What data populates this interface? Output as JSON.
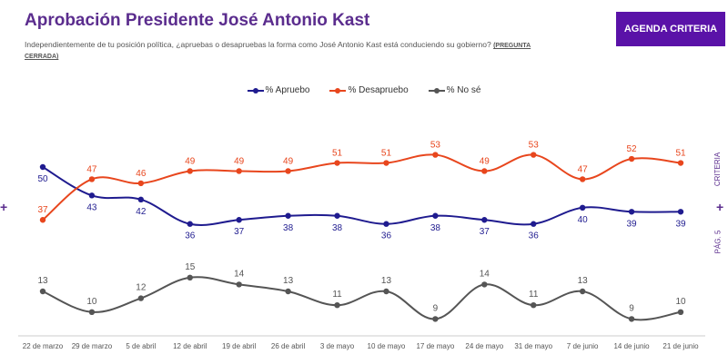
{
  "header": {
    "title": "Aprobación Presidente José Antonio Kast",
    "subtitle": "Independientemente de tu posición política, ¿apruebas o desapruebas la forma como José Antonio Kast está conduciendo su gobierno?",
    "subtitle_tag": "(PREGUNTA CERRADA)",
    "badge": "AGENDA CRITERIA"
  },
  "side": {
    "brand": "CRITERIA",
    "page": "PÁG. 5",
    "plus": "+"
  },
  "colors": {
    "accent": "#5a12a8",
    "apruebo": "#1f1b8f",
    "desapruebo": "#e8461d",
    "nose": "#555555"
  },
  "chart_data": {
    "type": "line",
    "title": "Aprobación Presidente José Antonio Kast",
    "categories": [
      "22 de marzo",
      "29 de marzo",
      "5 de abril",
      "12 de abril",
      "19 de abril",
      "26 de abril",
      "3 de mayo",
      "10 de mayo",
      "17 de mayo",
      "24 de mayo",
      "31 de mayo",
      "7 de junio",
      "14 de junio",
      "21 de junio"
    ],
    "series": [
      {
        "name": "% Apruebo",
        "color": "#1f1b8f",
        "values": [
          50,
          43,
          42,
          36,
          37,
          38,
          38,
          36,
          38,
          37,
          36,
          40,
          39,
          39
        ]
      },
      {
        "name": "% Desapruebo",
        "color": "#e8461d",
        "values": [
          37,
          47,
          46,
          49,
          49,
          49,
          51,
          51,
          53,
          49,
          53,
          47,
          52,
          51
        ]
      },
      {
        "name": "% No sé",
        "color": "#555555",
        "values": [
          13,
          10,
          12,
          15,
          14,
          13,
          11,
          13,
          9,
          14,
          11,
          13,
          9,
          10
        ]
      }
    ],
    "legend_position": "top-center",
    "grid": false,
    "yaxis_visible": false
  }
}
